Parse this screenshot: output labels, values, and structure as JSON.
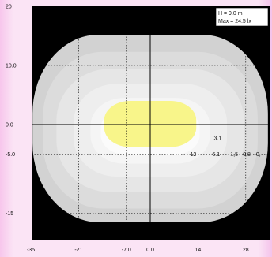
{
  "chart_data": {
    "type": "contour",
    "info": {
      "height_label": "H = 9.0 m",
      "max_label": "Max = 24.5 lx"
    },
    "xlim": [
      -35,
      35
    ],
    "ylim": [
      -20,
      20
    ],
    "x_ticks": [
      {
        "value": -35,
        "label": "-35"
      },
      {
        "value": -21,
        "label": "-21"
      },
      {
        "value": -7,
        "label": "-7.0"
      },
      {
        "value": 0,
        "label": "0.0"
      },
      {
        "value": 14,
        "label": "14"
      },
      {
        "value": 28,
        "label": "28"
      }
    ],
    "y_ticks": [
      {
        "value": 20,
        "label": "20"
      },
      {
        "value": 10,
        "label": "10.0"
      },
      {
        "value": 0,
        "label": "0.0"
      },
      {
        "value": -5,
        "label": "-5.0"
      },
      {
        "value": -15,
        "label": "-15"
      }
    ],
    "grid": true,
    "contours": [
      {
        "level": "0.3",
        "color": "#d2d2d2",
        "half_width": 34.5,
        "top": 15.2,
        "bottom": -16.5
      },
      {
        "level": "0.8",
        "color": "#dcdcdc",
        "half_width": 31.5,
        "top": 12.3,
        "bottom": -14.2
      },
      {
        "level": "1.5",
        "color": "#e6e6e6",
        "half_width": 27.5,
        "top": 9.4,
        "bottom": -11.4
      },
      {
        "level": "3.1",
        "color": "#eeeeee",
        "half_width": 22.5,
        "top": 6.9,
        "bottom": -8.8
      },
      {
        "level": "6.1",
        "color": "#f5f5f5",
        "half_width": 17.5,
        "top": 4.5,
        "bottom": -6.6
      },
      {
        "level": "12",
        "color": "#fbfbfb",
        "half_width": 14.5,
        "top": 2.8,
        "bottom": -5.2
      },
      {
        "level": "max",
        "color": "#f8f58a",
        "half_width": 13.5,
        "top": 4.0,
        "bottom": -3.8
      }
    ],
    "contour_labels": [
      {
        "text": "3.1",
        "x": 19.8,
        "y": -2.6
      },
      {
        "text": "12",
        "x": 12.6,
        "y": -5.3
      },
      {
        "text": "6.1",
        "x": 19.3,
        "y": -5.3
      },
      {
        "text": "1,5",
        "x": 24.6,
        "y": -5.3
      },
      {
        "text": "0,8",
        "x": 28.3,
        "y": -5.3
      },
      {
        "text": "0,",
        "x": 31.7,
        "y": -5.3
      }
    ]
  }
}
